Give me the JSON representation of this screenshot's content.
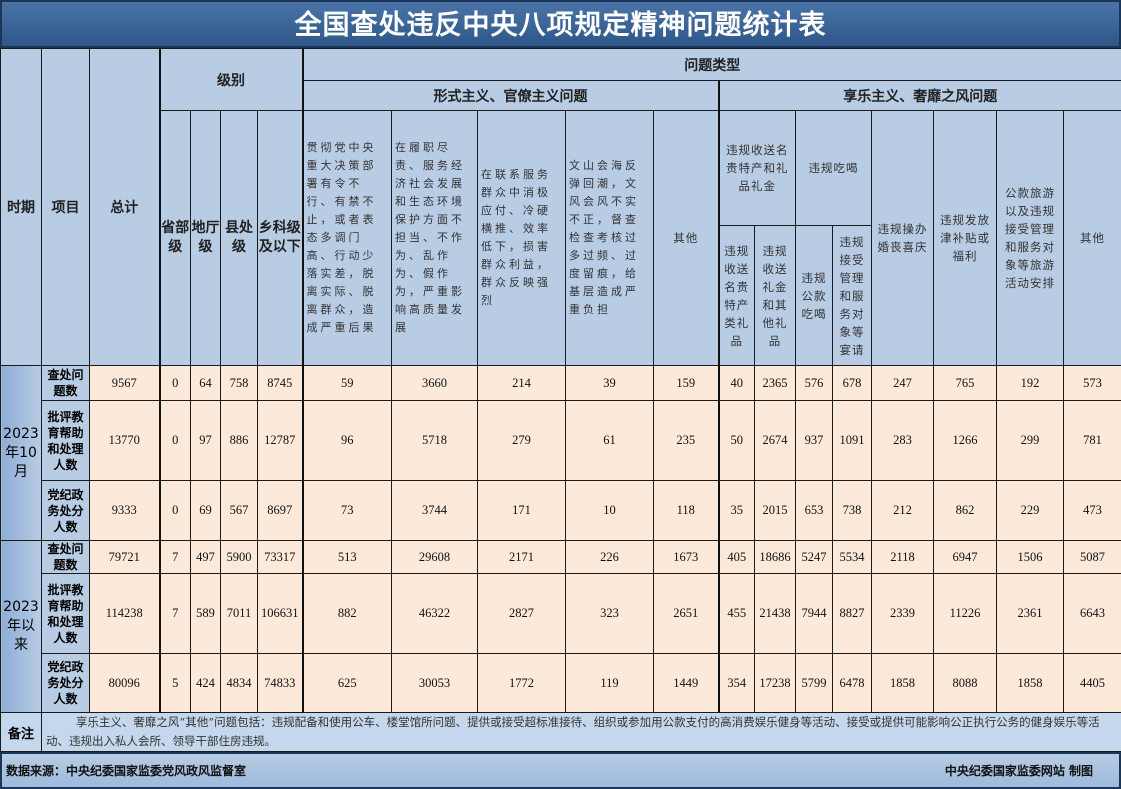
{
  "title": "全国查处违反中央八项规定精神问题统计表",
  "header": {
    "period": "时期",
    "item": "项目",
    "total": "总计",
    "level_group": "级别",
    "levels": [
      "省部级",
      "地厅级",
      "县处级",
      "乡科级及以下"
    ],
    "problem_type": "问题类型",
    "formalism_group": "形式主义、官僚主义问题",
    "formalism_cols": [
      "贯彻党中央重大决策部署有令不行、有禁不止，或者表态多调门高、行动少落实差，脱离实际、脱离群众，造成严重后果",
      "在履职尽责、服务经济社会发展和生态环境保护方面不担当、不作为、乱作为、假作为，严重影响高质量发展",
      "在联系服务群众中消极应付、冷硬横推、效率低下，损害群众利益，群众反映强烈",
      "文山会海反弹回潮，文风会风不实不正，督查检查考核过多过频、过度留痕，给基层造成严重负担",
      "其他"
    ],
    "hedonism_group": "享乐主义、奢靡之风问题",
    "gifts_group": "违规收送名贵特产和礼品礼金",
    "gifts_cols": [
      "违规收送名贵特产类礼品",
      "违规收送礼金和其他礼品"
    ],
    "dining_group": "违规吃喝",
    "dining_cols": [
      "违规公款吃喝",
      "违规接受管理和服务对象等宴请"
    ],
    "hedonism_cols": [
      "违规操办婚丧喜庆",
      "违规发放津补贴或福利",
      "公款旅游以及违规接受管理和服务对象等旅游活动安排",
      "其他"
    ]
  },
  "periods": [
    {
      "label": "2023年10月",
      "rows": [
        {
          "item": "查处问题数",
          "values": [
            9567,
            0,
            64,
            758,
            8745,
            59,
            3660,
            214,
            39,
            159,
            40,
            2365,
            576,
            678,
            247,
            765,
            192,
            573
          ]
        },
        {
          "item": "批评教育帮助和处理人数",
          "values": [
            13770,
            0,
            97,
            886,
            12787,
            96,
            5718,
            279,
            61,
            235,
            50,
            2674,
            937,
            1091,
            283,
            1266,
            299,
            781
          ]
        },
        {
          "item": "党纪政务处分人数",
          "values": [
            9333,
            0,
            69,
            567,
            8697,
            73,
            3744,
            171,
            10,
            118,
            35,
            2015,
            653,
            738,
            212,
            862,
            229,
            473
          ]
        }
      ]
    },
    {
      "label": "2023年以来",
      "rows": [
        {
          "item": "查处问题数",
          "values": [
            79721,
            7,
            497,
            5900,
            73317,
            513,
            29608,
            2171,
            226,
            1673,
            405,
            18686,
            5247,
            5534,
            2118,
            6947,
            1506,
            5087
          ]
        },
        {
          "item": "批评教育帮助和处理人数",
          "values": [
            114238,
            7,
            589,
            7011,
            106631,
            882,
            46322,
            2827,
            323,
            2651,
            455,
            21438,
            7944,
            8827,
            2339,
            11226,
            2361,
            6643
          ]
        },
        {
          "item": "党纪政务处分人数",
          "values": [
            80096,
            5,
            424,
            4834,
            74833,
            625,
            30053,
            1772,
            119,
            1449,
            354,
            17238,
            5799,
            6478,
            1858,
            8088,
            1858,
            4405
          ]
        }
      ]
    }
  ],
  "note": {
    "label": "备注",
    "text": "享乐主义、奢靡之风“其他”问题包括：违规配备和使用公车、楼堂馆所问题、提供或接受超标准接待、组织或参加用公款支付的高消费娱乐健身等活动、接受或提供可能影响公正执行公务的健身娱乐等活动、违规出入私人会所、领导干部住房违规。"
  },
  "footer": {
    "source": "数据来源：中央纪委国家监委党风政风监督室",
    "credit": "中央纪委国家监委网站 制图"
  },
  "colors": {
    "title_bg": "#2f5688",
    "header_bg": "#b8cce4",
    "cell_bg": "#fde9d9"
  }
}
